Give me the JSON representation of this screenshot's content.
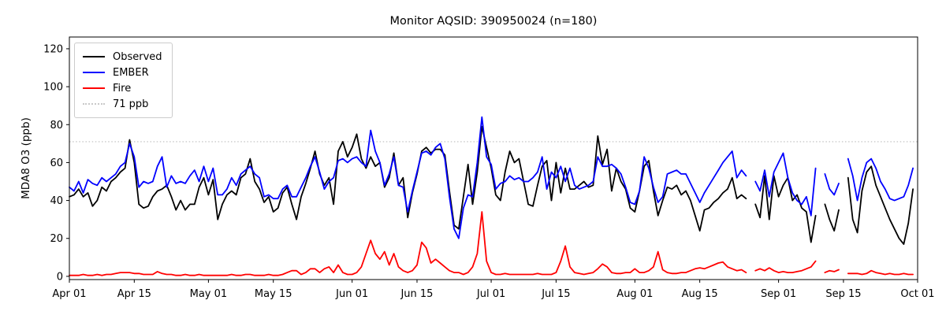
{
  "figure": {
    "title": "Monitor AQSID: 390950024 (n=180)",
    "ylabel": "MDA8 O3 (ppb)"
  },
  "legend": {
    "items": [
      {
        "label": "Observed",
        "color": "#000000",
        "style": "solid"
      },
      {
        "label": "EMBER",
        "color": "#0000ff",
        "style": "solid"
      },
      {
        "label": "Fire",
        "color": "#ff0000",
        "style": "solid"
      },
      {
        "label": "71 ppb",
        "color": "#c9c9c9",
        "style": "dotted"
      }
    ]
  },
  "chart_data": {
    "type": "line",
    "title": "Monitor AQSID: 390950024 (n=180)",
    "xlabel": "",
    "ylabel": "MDA8 O3 (ppb)",
    "x_start": "Apr 01",
    "x_end": "Oct 01",
    "n_points_per_series": 180,
    "n_days_axis": 183,
    "missing_dates": [
      "Aug 26",
      "Sep 10",
      "Sep 15"
    ],
    "ylim": [
      -1.7,
      126.2
    ],
    "yticks": [
      0,
      20,
      40,
      60,
      80,
      100,
      120
    ],
    "xticks": [
      {
        "day": 0,
        "label": "Apr 01"
      },
      {
        "day": 14,
        "label": "Apr 15"
      },
      {
        "day": 30,
        "label": "May 01"
      },
      {
        "day": 44,
        "label": "May 15"
      },
      {
        "day": 61,
        "label": "Jun 01"
      },
      {
        "day": 75,
        "label": "Jun 15"
      },
      {
        "day": 91,
        "label": "Jul 01"
      },
      {
        "day": 105,
        "label": "Jul 15"
      },
      {
        "day": 122,
        "label": "Aug 01"
      },
      {
        "day": 136,
        "label": "Aug 15"
      },
      {
        "day": 153,
        "label": "Sep 01"
      },
      {
        "day": 167,
        "label": "Sep 15"
      },
      {
        "day": 183,
        "label": "Oct 01"
      }
    ],
    "threshold": {
      "label": "71 ppb",
      "value": 71,
      "color": "#c9c9c9",
      "style": "dotted"
    },
    "grid": false,
    "legend_position": "upper left",
    "series": [
      {
        "name": "Observed",
        "color": "#000000",
        "values": [
          42,
          43,
          46,
          42,
          44,
          37,
          40,
          47,
          45,
          50,
          52,
          55,
          57,
          72,
          60,
          38,
          36,
          37,
          42,
          45,
          46,
          48,
          42,
          35,
          40,
          35,
          38,
          38,
          47,
          52,
          43,
          51,
          30,
          38,
          43,
          45,
          43,
          52,
          54,
          62,
          50,
          46,
          39,
          42,
          34,
          36,
          44,
          47,
          38,
          30,
          42,
          49,
          57,
          66,
          54,
          48,
          52,
          38,
          66,
          71,
          63,
          68,
          75,
          62,
          57,
          63,
          58,
          60,
          47,
          52,
          65,
          48,
          52,
          31,
          44,
          54,
          66,
          68,
          65,
          67,
          67,
          64,
          45,
          27,
          25,
          42,
          59,
          38,
          55,
          79,
          68,
          57,
          43,
          40,
          55,
          66,
          60,
          62,
          50,
          38,
          37,
          48,
          58,
          61,
          40,
          60,
          44,
          57,
          46,
          46,
          48,
          50,
          47,
          48,
          74,
          59,
          67,
          45,
          57,
          50,
          46,
          36,
          34,
          45,
          58,
          61,
          45,
          32,
          40,
          47,
          46,
          48,
          43,
          45,
          40,
          32,
          24,
          35,
          36,
          39,
          41,
          44,
          46,
          52,
          41,
          43,
          41,
          null,
          38,
          31,
          53,
          30,
          53,
          42,
          48,
          52,
          40,
          43,
          36,
          34,
          18,
          32,
          null,
          38,
          30,
          24,
          35,
          null,
          52,
          30,
          23,
          45,
          55,
          58,
          48,
          42,
          36,
          30,
          25,
          20,
          17,
          28,
          46
        ]
      },
      {
        "name": "EMBER",
        "color": "#0000ff",
        "values": [
          47,
          45,
          50,
          44,
          51,
          49,
          48,
          52,
          50,
          52,
          54,
          58,
          60,
          70,
          63,
          47,
          50,
          49,
          50,
          58,
          63,
          47,
          53,
          49,
          50,
          49,
          53,
          56,
          50,
          58,
          50,
          57,
          43,
          43,
          46,
          52,
          48,
          54,
          56,
          58,
          54,
          52,
          42,
          43,
          41,
          41,
          46,
          48,
          42,
          42,
          47,
          52,
          58,
          63,
          55,
          46,
          50,
          52,
          61,
          62,
          60,
          62,
          63,
          60,
          58,
          77,
          66,
          60,
          48,
          54,
          63,
          48,
          47,
          34,
          45,
          55,
          65,
          66,
          64,
          68,
          70,
          62,
          42,
          25,
          20,
          36,
          43,
          42,
          60,
          84,
          63,
          59,
          46,
          49,
          50,
          53,
          51,
          52,
          50,
          50,
          52,
          55,
          63,
          46,
          55,
          52,
          58,
          50,
          57,
          48,
          46,
          47,
          48,
          50,
          63,
          58,
          58,
          59,
          57,
          54,
          47,
          39,
          38,
          45,
          63,
          57,
          47,
          39,
          42,
          54,
          55,
          56,
          54,
          54,
          49,
          44,
          39,
          44,
          48,
          52,
          56,
          60,
          63,
          66,
          52,
          56,
          53,
          null,
          50,
          45,
          56,
          42,
          55,
          60,
          65,
          52,
          44,
          40,
          38,
          42,
          32,
          57,
          null,
          54,
          46,
          43,
          49,
          null,
          62,
          53,
          40,
          52,
          60,
          62,
          57,
          50,
          46,
          41,
          40,
          41,
          42,
          48,
          57
        ]
      },
      {
        "name": "Fire",
        "color": "#ff0000",
        "values": [
          0.5,
          0.5,
          0.5,
          1,
          0.5,
          0.5,
          1,
          0.5,
          1,
          1,
          1.5,
          2,
          2,
          2,
          1.5,
          1.5,
          1,
          1,
          1,
          2.5,
          1.5,
          1,
          1,
          0.5,
          0.5,
          1,
          0.5,
          0.5,
          1,
          0.5,
          0.5,
          0.5,
          0.5,
          0.5,
          0.5,
          1,
          0.5,
          0.5,
          1,
          1,
          0.5,
          0.5,
          0.5,
          1,
          0.5,
          0.5,
          1,
          2,
          3,
          3,
          1,
          2,
          4,
          4,
          2,
          4,
          5,
          2,
          6,
          2,
          1,
          1,
          2,
          5,
          12,
          19,
          12,
          9,
          13,
          6,
          12,
          5,
          3,
          2,
          3,
          6,
          18,
          15,
          7,
          9,
          7,
          5,
          3,
          2,
          2,
          1,
          2,
          5,
          12,
          34,
          8,
          2,
          1,
          1,
          1.5,
          1,
          1,
          1,
          1,
          1,
          1,
          1.5,
          1,
          1,
          1,
          2,
          8,
          16,
          5,
          2,
          1.5,
          1,
          1.5,
          2,
          4,
          6.5,
          5,
          2,
          1.5,
          1.5,
          2,
          2,
          4,
          2,
          2,
          3,
          5,
          13,
          3.5,
          2,
          1.5,
          1.5,
          2,
          2,
          3,
          4,
          4.5,
          4,
          5,
          6,
          7,
          7.5,
          5,
          4,
          3,
          3.5,
          2,
          null,
          3,
          4,
          3,
          4.5,
          3,
          2,
          2.5,
          2,
          2,
          2.5,
          3,
          4,
          5,
          8,
          null,
          2,
          3,
          2.5,
          3.5,
          null,
          1.5,
          1.5,
          1.5,
          1,
          1.5,
          3,
          2,
          1.5,
          1,
          1.5,
          1,
          1,
          1.5,
          1,
          1
        ]
      }
    ]
  }
}
